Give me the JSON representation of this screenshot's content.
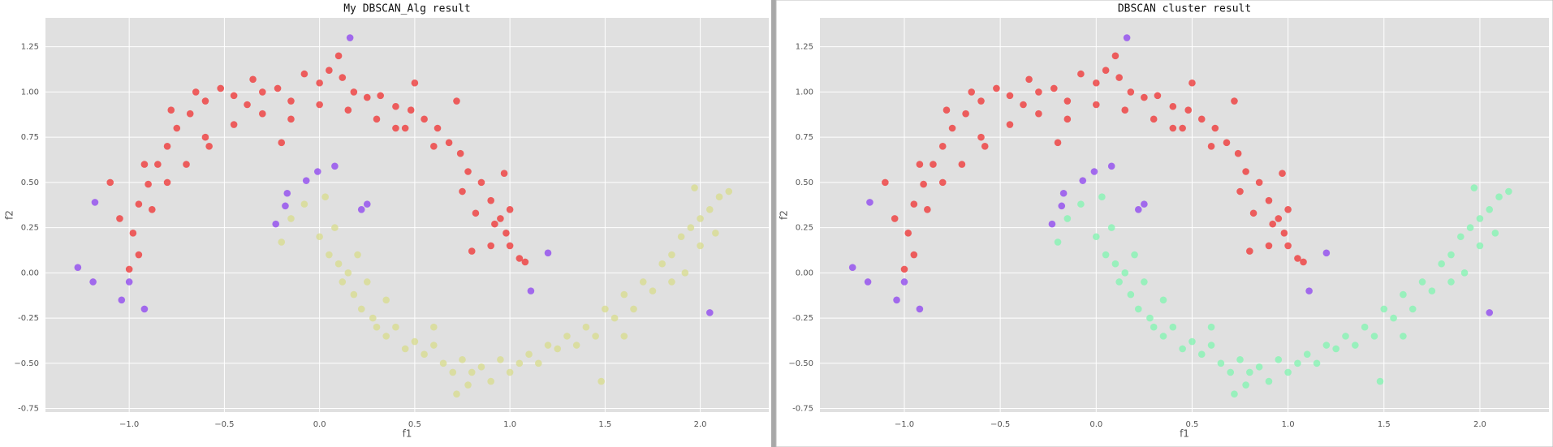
{
  "chart_data": [
    {
      "type": "scatter",
      "title": "My DBSCAN_Alg result",
      "x_label": "f1",
      "y_label": "f2",
      "xlim": [
        -1.44,
        2.36
      ],
      "ylim": [
        -0.77,
        1.41
      ],
      "grid": true,
      "xticks": [
        {
          "value": -1,
          "label": "−1.0"
        },
        {
          "value": -0.5,
          "label": "−0.5"
        },
        {
          "value": 0,
          "label": "0.0"
        },
        0.5,
        {
          "value": 1,
          "label": "1.0"
        },
        1.5,
        {
          "value": 2,
          "label": "2.0"
        }
      ],
      "yticks": [
        -0.75,
        {
          "value": -0.5,
          "label": "−0.50"
        },
        -0.25,
        {
          "value": 0,
          "label": "0.00"
        },
        0.25,
        {
          "value": 0.5,
          "label": "0.50"
        },
        0.75,
        {
          "value": 1,
          "label": "1.00"
        },
        1.25
      ],
      "series": [
        {
          "color": "#f03030",
          "x": [
            -0.98,
            -0.95,
            -0.9,
            -0.85,
            -0.8,
            -0.75,
            -0.68,
            -0.6,
            -0.52,
            -0.45,
            -0.38,
            -0.3,
            -0.22,
            -0.15,
            -0.08,
            0.0,
            0.05,
            0.12,
            0.18,
            0.25,
            0.32,
            0.4,
            0.48,
            0.55,
            0.62,
            0.68,
            0.74,
            0.78,
            0.85,
            0.9,
            0.95,
            0.98,
            1.0,
            1.05,
            0.92,
            0.82,
            0.75,
            0.6,
            0.45,
            0.3,
            0.15,
            0.0,
            -0.15,
            -0.3,
            -0.45,
            -0.6,
            -0.7,
            -0.8,
            -0.88,
            -0.95,
            -1.0,
            -1.05,
            -1.1,
            -0.92,
            -0.78,
            -0.65,
            -0.35,
            0.1,
            0.5,
            0.72,
            0.97,
            1.0,
            0.9,
            0.8,
            1.08,
            -0.58,
            -0.2,
            0.4
          ],
          "y": [
            0.22,
            0.38,
            0.49,
            0.6,
            0.7,
            0.8,
            0.88,
            0.95,
            1.02,
            0.98,
            0.93,
            1.0,
            1.02,
            0.95,
            1.1,
            1.05,
            1.12,
            1.08,
            1.0,
            0.97,
            0.98,
            0.92,
            0.9,
            0.85,
            0.8,
            0.72,
            0.66,
            0.56,
            0.5,
            0.4,
            0.3,
            0.22,
            0.15,
            0.08,
            0.27,
            0.33,
            0.45,
            0.7,
            0.8,
            0.85,
            0.9,
            0.93,
            0.85,
            0.88,
            0.82,
            0.75,
            0.6,
            0.5,
            0.35,
            0.1,
            0.02,
            0.3,
            0.5,
            0.6,
            0.9,
            1.0,
            1.07,
            1.2,
            1.05,
            0.95,
            0.55,
            0.35,
            0.15,
            0.12,
            0.06,
            0.7,
            0.72,
            0.8
          ]
        },
        {
          "color": "#d8dc8c",
          "x": [
            -0.2,
            -0.15,
            -0.08,
            0.0,
            0.03,
            0.05,
            0.1,
            0.12,
            0.15,
            0.18,
            0.22,
            0.28,
            0.3,
            0.35,
            0.4,
            0.45,
            0.5,
            0.55,
            0.6,
            0.65,
            0.7,
            0.75,
            0.8,
            0.85,
            0.9,
            0.95,
            1.0,
            1.05,
            1.1,
            1.15,
            1.2,
            1.25,
            1.3,
            1.35,
            1.4,
            1.45,
            1.5,
            1.55,
            1.6,
            1.65,
            1.7,
            1.75,
            1.8,
            1.85,
            1.9,
            1.95,
            2.0,
            2.05,
            1.97,
            2.1,
            2.15,
            2.0,
            1.92,
            1.85,
            0.08,
            0.2,
            0.25,
            0.35,
            0.6,
            0.78,
            1.48,
            0.72,
            1.6,
            2.08
          ],
          "y": [
            0.17,
            0.3,
            0.38,
            0.2,
            0.42,
            0.1,
            0.05,
            -0.05,
            0.0,
            -0.12,
            -0.2,
            -0.25,
            -0.3,
            -0.35,
            -0.3,
            -0.42,
            -0.38,
            -0.45,
            -0.4,
            -0.5,
            -0.55,
            -0.48,
            -0.55,
            -0.52,
            -0.6,
            -0.48,
            -0.55,
            -0.5,
            -0.45,
            -0.5,
            -0.4,
            -0.42,
            -0.35,
            -0.4,
            -0.3,
            -0.35,
            -0.2,
            -0.25,
            -0.12,
            -0.2,
            -0.05,
            -0.1,
            0.05,
            0.1,
            0.2,
            0.25,
            0.3,
            0.35,
            0.47,
            0.42,
            0.45,
            0.15,
            0.0,
            -0.05,
            0.25,
            0.1,
            -0.05,
            -0.15,
            -0.3,
            -0.62,
            -0.6,
            -0.67,
            -0.35,
            0.22
          ]
        },
        {
          "color": "#8c42f0",
          "x": [
            -1.27,
            -1.18,
            -1.19,
            -1.04,
            -1.0,
            -0.92,
            -0.23,
            -0.17,
            -0.18,
            -0.07,
            -0.01,
            0.08,
            0.22,
            0.25,
            0.16,
            1.11,
            1.2,
            2.05
          ],
          "y": [
            0.03,
            0.39,
            -0.05,
            -0.15,
            -0.05,
            -0.2,
            0.27,
            0.44,
            0.37,
            0.51,
            0.56,
            0.59,
            0.35,
            0.38,
            1.3,
            -0.1,
            0.11,
            -0.22
          ]
        }
      ]
    },
    {
      "type": "scatter",
      "title": "DBSCAN cluster result",
      "x_label": "f1",
      "y_label": "f2",
      "xlim": [
        -1.44,
        2.36
      ],
      "ylim": [
        -0.77,
        1.41
      ],
      "grid": true,
      "xticks": [
        {
          "value": -1,
          "label": "−1.0"
        },
        {
          "value": -0.5,
          "label": "−0.5"
        },
        {
          "value": 0,
          "label": "0.0"
        },
        0.5,
        {
          "value": 1,
          "label": "1.0"
        },
        1.5,
        {
          "value": 2,
          "label": "2.0"
        }
      ],
      "yticks": [
        -0.75,
        {
          "value": -0.5,
          "label": "−0.50"
        },
        -0.25,
        {
          "value": 0,
          "label": "0.00"
        },
        0.25,
        {
          "value": 0.5,
          "label": "0.50"
        },
        0.75,
        {
          "value": 1,
          "label": "1.00"
        },
        1.25
      ],
      "series": [
        {
          "color": "#f03030",
          "x": [
            -0.98,
            -0.95,
            -0.9,
            -0.85,
            -0.8,
            -0.75,
            -0.68,
            -0.6,
            -0.52,
            -0.45,
            -0.38,
            -0.3,
            -0.22,
            -0.15,
            -0.08,
            0.0,
            0.05,
            0.12,
            0.18,
            0.25,
            0.32,
            0.4,
            0.48,
            0.55,
            0.62,
            0.68,
            0.74,
            0.78,
            0.85,
            0.9,
            0.95,
            0.98,
            1.0,
            1.05,
            0.92,
            0.82,
            0.75,
            0.6,
            0.45,
            0.3,
            0.15,
            0.0,
            -0.15,
            -0.3,
            -0.45,
            -0.6,
            -0.7,
            -0.8,
            -0.88,
            -0.95,
            -1.0,
            -1.05,
            -1.1,
            -0.92,
            -0.78,
            -0.65,
            -0.35,
            0.1,
            0.5,
            0.72,
            0.97,
            1.0,
            0.9,
            0.8,
            1.08,
            -0.58,
            -0.2,
            0.4
          ],
          "y": [
            0.22,
            0.38,
            0.49,
            0.6,
            0.7,
            0.8,
            0.88,
            0.95,
            1.02,
            0.98,
            0.93,
            1.0,
            1.02,
            0.95,
            1.1,
            1.05,
            1.12,
            1.08,
            1.0,
            0.97,
            0.98,
            0.92,
            0.9,
            0.85,
            0.8,
            0.72,
            0.66,
            0.56,
            0.5,
            0.4,
            0.3,
            0.22,
            0.15,
            0.08,
            0.27,
            0.33,
            0.45,
            0.7,
            0.8,
            0.85,
            0.9,
            0.93,
            0.85,
            0.88,
            0.82,
            0.75,
            0.6,
            0.5,
            0.35,
            0.1,
            0.02,
            0.3,
            0.5,
            0.6,
            0.9,
            1.0,
            1.07,
            1.2,
            1.05,
            0.95,
            0.55,
            0.35,
            0.15,
            0.12,
            0.06,
            0.7,
            0.72,
            0.8
          ]
        },
        {
          "color": "#80f5b0",
          "x": [
            -0.2,
            -0.15,
            -0.08,
            0.0,
            0.03,
            0.05,
            0.1,
            0.12,
            0.15,
            0.18,
            0.22,
            0.28,
            0.3,
            0.35,
            0.4,
            0.45,
            0.5,
            0.55,
            0.6,
            0.65,
            0.7,
            0.75,
            0.8,
            0.85,
            0.9,
            0.95,
            1.0,
            1.05,
            1.1,
            1.15,
            1.2,
            1.25,
            1.3,
            1.35,
            1.4,
            1.45,
            1.5,
            1.55,
            1.6,
            1.65,
            1.7,
            1.75,
            1.8,
            1.85,
            1.9,
            1.95,
            2.0,
            2.05,
            1.97,
            2.1,
            2.15,
            2.0,
            1.92,
            1.85,
            0.08,
            0.2,
            0.25,
            0.35,
            0.6,
            0.78,
            1.48,
            0.72,
            1.6,
            2.08
          ],
          "y": [
            0.17,
            0.3,
            0.38,
            0.2,
            0.42,
            0.1,
            0.05,
            -0.05,
            0.0,
            -0.12,
            -0.2,
            -0.25,
            -0.3,
            -0.35,
            -0.3,
            -0.42,
            -0.38,
            -0.45,
            -0.4,
            -0.5,
            -0.55,
            -0.48,
            -0.55,
            -0.52,
            -0.6,
            -0.48,
            -0.55,
            -0.5,
            -0.45,
            -0.5,
            -0.4,
            -0.42,
            -0.35,
            -0.4,
            -0.3,
            -0.35,
            -0.2,
            -0.25,
            -0.12,
            -0.2,
            -0.05,
            -0.1,
            0.05,
            0.1,
            0.2,
            0.25,
            0.3,
            0.35,
            0.47,
            0.42,
            0.45,
            0.15,
            0.0,
            -0.05,
            0.25,
            0.1,
            -0.05,
            -0.15,
            -0.3,
            -0.62,
            -0.6,
            -0.67,
            -0.35,
            0.22
          ]
        },
        {
          "color": "#8c42f0",
          "x": [
            -1.27,
            -1.18,
            -1.19,
            -1.04,
            -1.0,
            -0.92,
            -0.23,
            -0.17,
            -0.18,
            -0.07,
            -0.01,
            0.08,
            0.22,
            0.25,
            0.16,
            1.11,
            1.2,
            2.05
          ],
          "y": [
            0.03,
            0.39,
            -0.05,
            -0.15,
            -0.05,
            -0.2,
            0.27,
            0.44,
            0.37,
            0.51,
            0.56,
            0.59,
            0.35,
            0.38,
            1.3,
            -0.1,
            0.11,
            -0.22
          ]
        }
      ]
    }
  ]
}
